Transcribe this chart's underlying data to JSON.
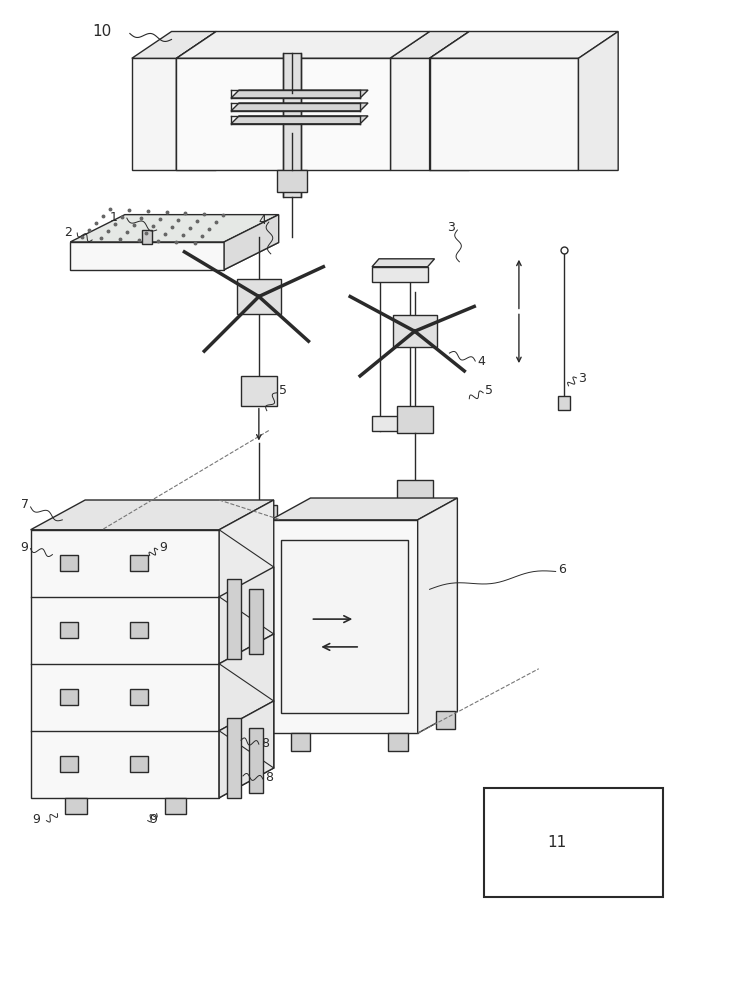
{
  "bg_color": "#ffffff",
  "lc": "#2a2a2a",
  "lw": 1.0,
  "fig_width": 7.48,
  "fig_height": 10.0,
  "dpi": 100
}
